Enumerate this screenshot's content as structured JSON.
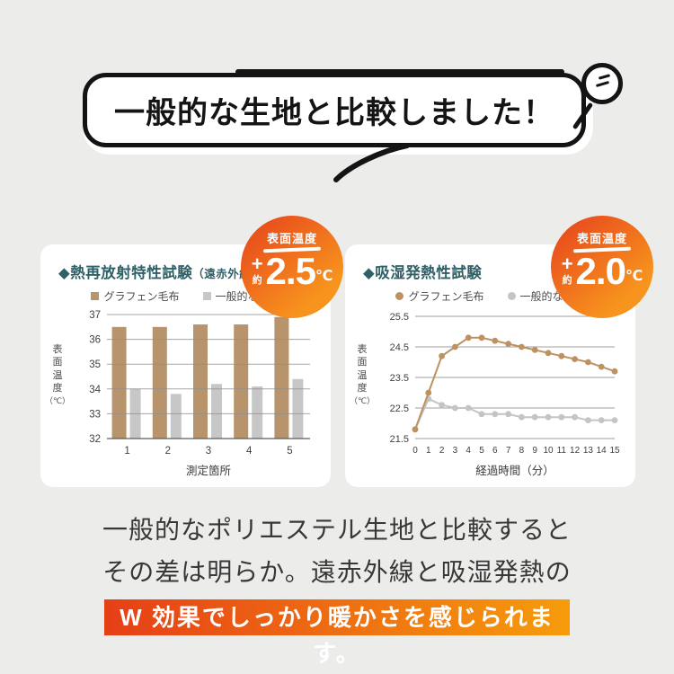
{
  "header": {
    "bubble_text": "一般的な生地と比較しました！"
  },
  "chart_data": [
    {
      "type": "bar",
      "title": "◆熱再放射特性試験（遠赤外線）",
      "title_main": "◆熱再放射特性試験",
      "title_sub": "（遠赤外線）",
      "categories": [
        "1",
        "2",
        "3",
        "4",
        "5"
      ],
      "series": [
        {
          "name": "グラフェン毛布",
          "color": "#b7946b",
          "values": [
            36.5,
            36.5,
            36.6,
            36.6,
            36.9
          ]
        },
        {
          "name": "一般的な生地",
          "color": "#c7c7c7",
          "values": [
            34.0,
            33.8,
            34.2,
            34.1,
            34.4
          ]
        }
      ],
      "xlabel": "測定箇所",
      "ylabel": "表面温度",
      "ylabel_unit": "（℃）",
      "ylim": [
        32,
        37
      ],
      "yticks": [
        32,
        33,
        34,
        35,
        36,
        37
      ],
      "grid": true,
      "legend_position": "top"
    },
    {
      "type": "line",
      "title": "◆吸湿発熱性試験",
      "title_main": "◆吸湿発熱性試験",
      "title_sub": "",
      "x": [
        0,
        1,
        2,
        3,
        4,
        5,
        6,
        7,
        8,
        9,
        10,
        11,
        12,
        13,
        14,
        15
      ],
      "series": [
        {
          "name": "グラフェン毛布",
          "color": "#bd9260",
          "values": [
            21.8,
            23.0,
            24.2,
            24.5,
            24.8,
            24.8,
            24.7,
            24.6,
            24.5,
            24.4,
            24.3,
            24.2,
            24.1,
            24.0,
            23.85,
            23.7
          ]
        },
        {
          "name": "一般的な生地",
          "color": "#c4c4c4",
          "values": [
            21.8,
            22.8,
            22.6,
            22.5,
            22.5,
            22.3,
            22.3,
            22.3,
            22.2,
            22.2,
            22.2,
            22.2,
            22.2,
            22.1,
            22.1,
            22.1
          ]
        }
      ],
      "xlabel": "経過時間（分）",
      "ylabel": "表面温度",
      "ylabel_unit": "（℃）",
      "ylim": [
        21.5,
        25.5
      ],
      "yticks": [
        21.5,
        22.5,
        23.5,
        24.5,
        25.5
      ],
      "grid": true,
      "legend_position": "top"
    }
  ],
  "badges": [
    {
      "top_label": "表面温度",
      "plus": "+",
      "approx": "約",
      "value": "2.5",
      "unit": "℃"
    },
    {
      "top_label": "表面温度",
      "plus": "+",
      "approx": "約",
      "value": "2.0",
      "unit": "℃"
    }
  ],
  "footer": {
    "line1": "一般的なポリエステル生地と比較すると",
    "line2": "その差は明らか。遠赤外線と吸湿発熱の",
    "highlight": "W 効果でしっかり暖かさを感じられます。"
  },
  "colors": {
    "background": "#ececea",
    "ink": "#141414",
    "title_teal": "#2f6067",
    "graphene_tan": "#b7946b",
    "standard_gray": "#c7c7c7",
    "badge_gradient": [
      "#e84b1d",
      "#f7941d"
    ],
    "highlight_gradient": [
      "#e63f17",
      "#f69c0c"
    ]
  }
}
